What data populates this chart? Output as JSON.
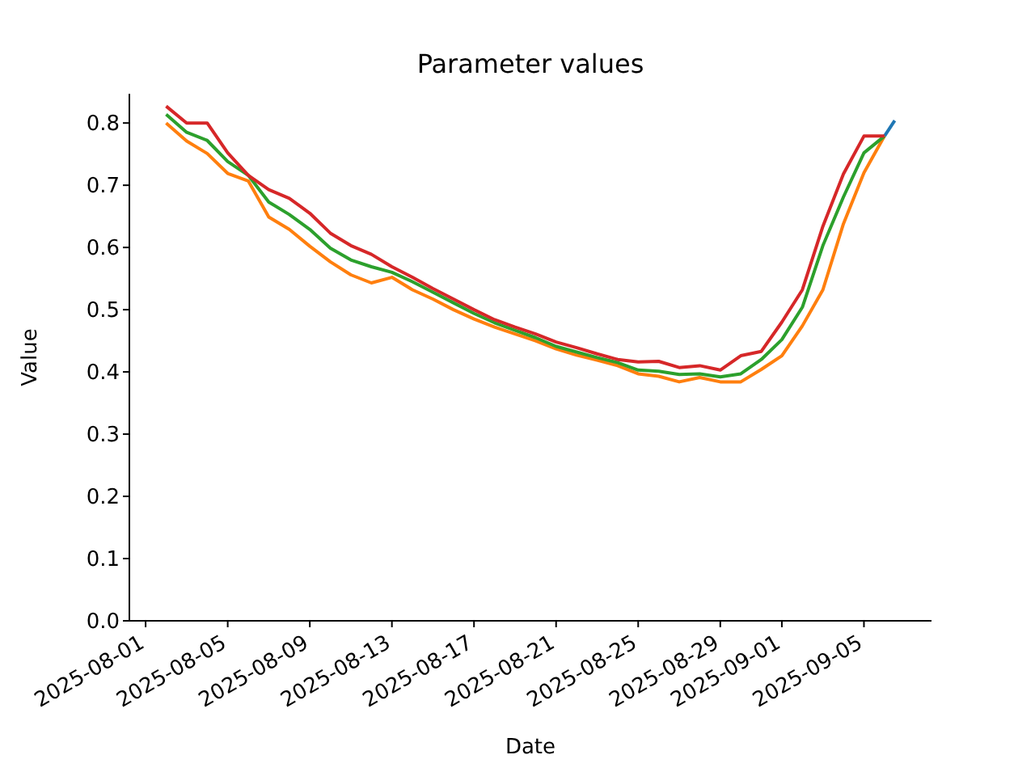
{
  "chart_data": {
    "type": "line",
    "title": "Parameter values",
    "xlabel": "Date",
    "ylabel": "Value",
    "xlim": [
      "2025-07-31T05:00",
      "2025-09-08T07:00"
    ],
    "xticks": [
      "2025-08-01",
      "2025-08-05",
      "2025-08-09",
      "2025-08-13",
      "2025-08-17",
      "2025-08-21",
      "2025-08-25",
      "2025-08-29",
      "2025-09-01",
      "2025-09-05"
    ],
    "ylim": [
      0,
      0.847
    ],
    "yticks": [
      {
        "value": 0,
        "label": "0.0"
      },
      0.1,
      0.2,
      0.3,
      0.4,
      0.5,
      0.6,
      0.7,
      0.8
    ],
    "grid": false,
    "legend": false,
    "marker": "none",
    "line_style": "solid",
    "series": [
      {
        "color": "#1f77b4",
        "x": [
          "2025-09-06",
          "2025-09-06T12:00"
        ],
        "values": [
          0.779,
          0.804
        ]
      },
      {
        "color": "#ff7f0e",
        "values": [
          0.8,
          0.771,
          0.751,
          0.719,
          0.707,
          0.649,
          0.629,
          0.602,
          0.577,
          0.556,
          0.543,
          0.552,
          0.532,
          0.517,
          0.5,
          0.485,
          0.472,
          0.461,
          0.45,
          0.437,
          0.427,
          0.419,
          0.41,
          0.397,
          0.393,
          0.384,
          0.391,
          0.384,
          0.384,
          0.404,
          0.426,
          0.474,
          0.532,
          0.638,
          0.72,
          0.779
        ]
      },
      {
        "color": "#2ca02c",
        "values": [
          0.814,
          0.785,
          0.772,
          0.738,
          0.716,
          0.673,
          0.653,
          0.629,
          0.599,
          0.58,
          0.569,
          0.56,
          0.545,
          0.528,
          0.511,
          0.494,
          0.479,
          0.467,
          0.455,
          0.441,
          0.432,
          0.423,
          0.415,
          0.403,
          0.401,
          0.396,
          0.397,
          0.392,
          0.397,
          0.42,
          0.452,
          0.504,
          0.603,
          0.681,
          0.752,
          0.779
        ]
      },
      {
        "color": "#d62728",
        "values": [
          0.827,
          0.8,
          0.8,
          0.752,
          0.716,
          0.693,
          0.679,
          0.655,
          0.623,
          0.603,
          0.589,
          0.569,
          0.552,
          0.534,
          0.517,
          0.5,
          0.484,
          0.472,
          0.461,
          0.448,
          0.439,
          0.429,
          0.42,
          0.416,
          0.417,
          0.407,
          0.41,
          0.403,
          0.426,
          0.433,
          0.48,
          0.532,
          0.634,
          0.718,
          0.779,
          0.779
        ]
      }
    ],
    "x": [
      "2025-08-02",
      "2025-08-03",
      "2025-08-04",
      "2025-08-05",
      "2025-08-06",
      "2025-08-07",
      "2025-08-08",
      "2025-08-09",
      "2025-08-10",
      "2025-08-11",
      "2025-08-12",
      "2025-08-13",
      "2025-08-14",
      "2025-08-15",
      "2025-08-16",
      "2025-08-17",
      "2025-08-18",
      "2025-08-19",
      "2025-08-20",
      "2025-08-21",
      "2025-08-22",
      "2025-08-23",
      "2025-08-24",
      "2025-08-25",
      "2025-08-26",
      "2025-08-27",
      "2025-08-28",
      "2025-08-29",
      "2025-08-30",
      "2025-08-31",
      "2025-09-01",
      "2025-09-02",
      "2025-09-03",
      "2025-09-04",
      "2025-09-05",
      "2025-09-06"
    ]
  }
}
